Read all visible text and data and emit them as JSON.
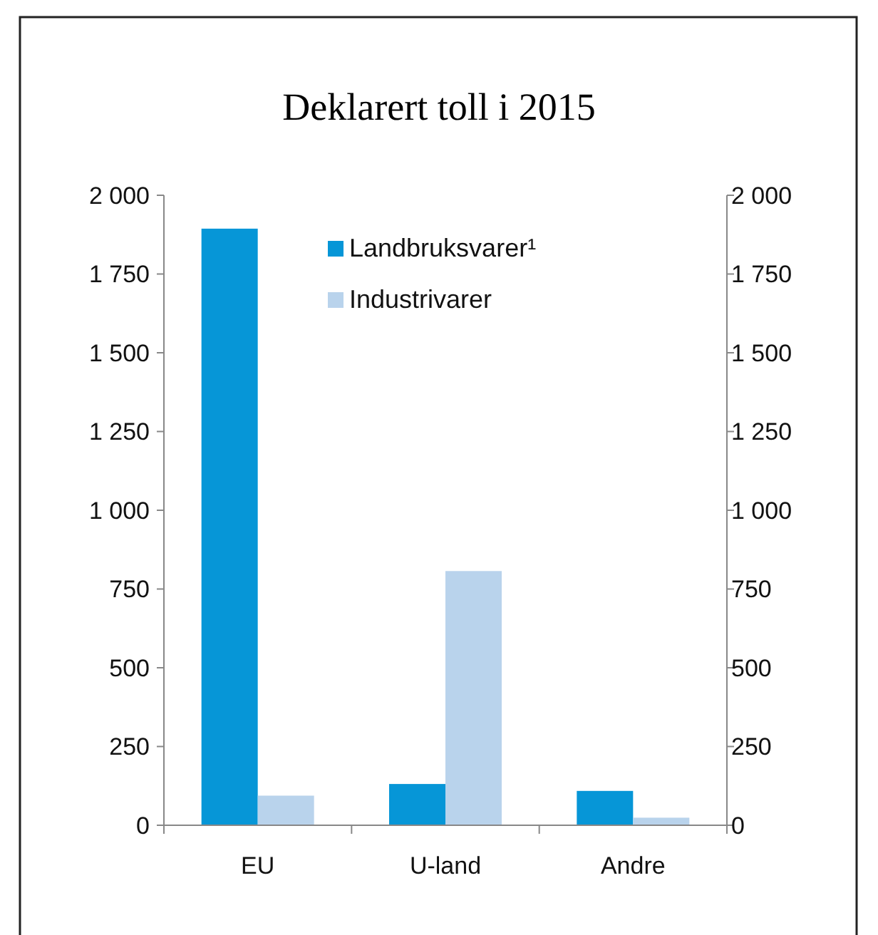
{
  "chart_data": {
    "type": "bar",
    "title": "Deklarert toll i 2015",
    "categories": [
      "EU",
      "U-land",
      "Andre"
    ],
    "series": [
      {
        "name": "Landbruksvarer¹",
        "color": "#0696d7",
        "values": [
          1894,
          131,
          109
        ]
      },
      {
        "name": "Industrivarer",
        "color": "#b9d3ec",
        "values": [
          94,
          807,
          24
        ]
      }
    ],
    "ylim": [
      0,
      2000
    ],
    "yticks": [
      {
        "value": 0,
        "label": "0"
      },
      {
        "value": 250,
        "label": "250"
      },
      {
        "value": 500,
        "label": "500"
      },
      {
        "value": 750,
        "label": "750"
      },
      {
        "value": 1000,
        "label": "1 000"
      },
      {
        "value": 1250,
        "label": "1 250"
      },
      {
        "value": 1500,
        "label": "1 500"
      },
      {
        "value": 1750,
        "label": "1 750"
      },
      {
        "value": 2000,
        "label": "2 000"
      }
    ],
    "y2lim": [
      0,
      2000
    ],
    "y2ticks": [
      {
        "value": 0,
        "label": "0"
      },
      {
        "value": 250,
        "label": "250"
      },
      {
        "value": 500,
        "label": "500"
      },
      {
        "value": 750,
        "label": "750"
      },
      {
        "value": 1000,
        "label": "1 000"
      },
      {
        "value": 1250,
        "label": "1 250"
      },
      {
        "value": 1500,
        "label": "1 500"
      },
      {
        "value": 1750,
        "label": "1 750"
      },
      {
        "value": 2000,
        "label": "2 000"
      }
    ],
    "legend": "top",
    "grid": false
  }
}
